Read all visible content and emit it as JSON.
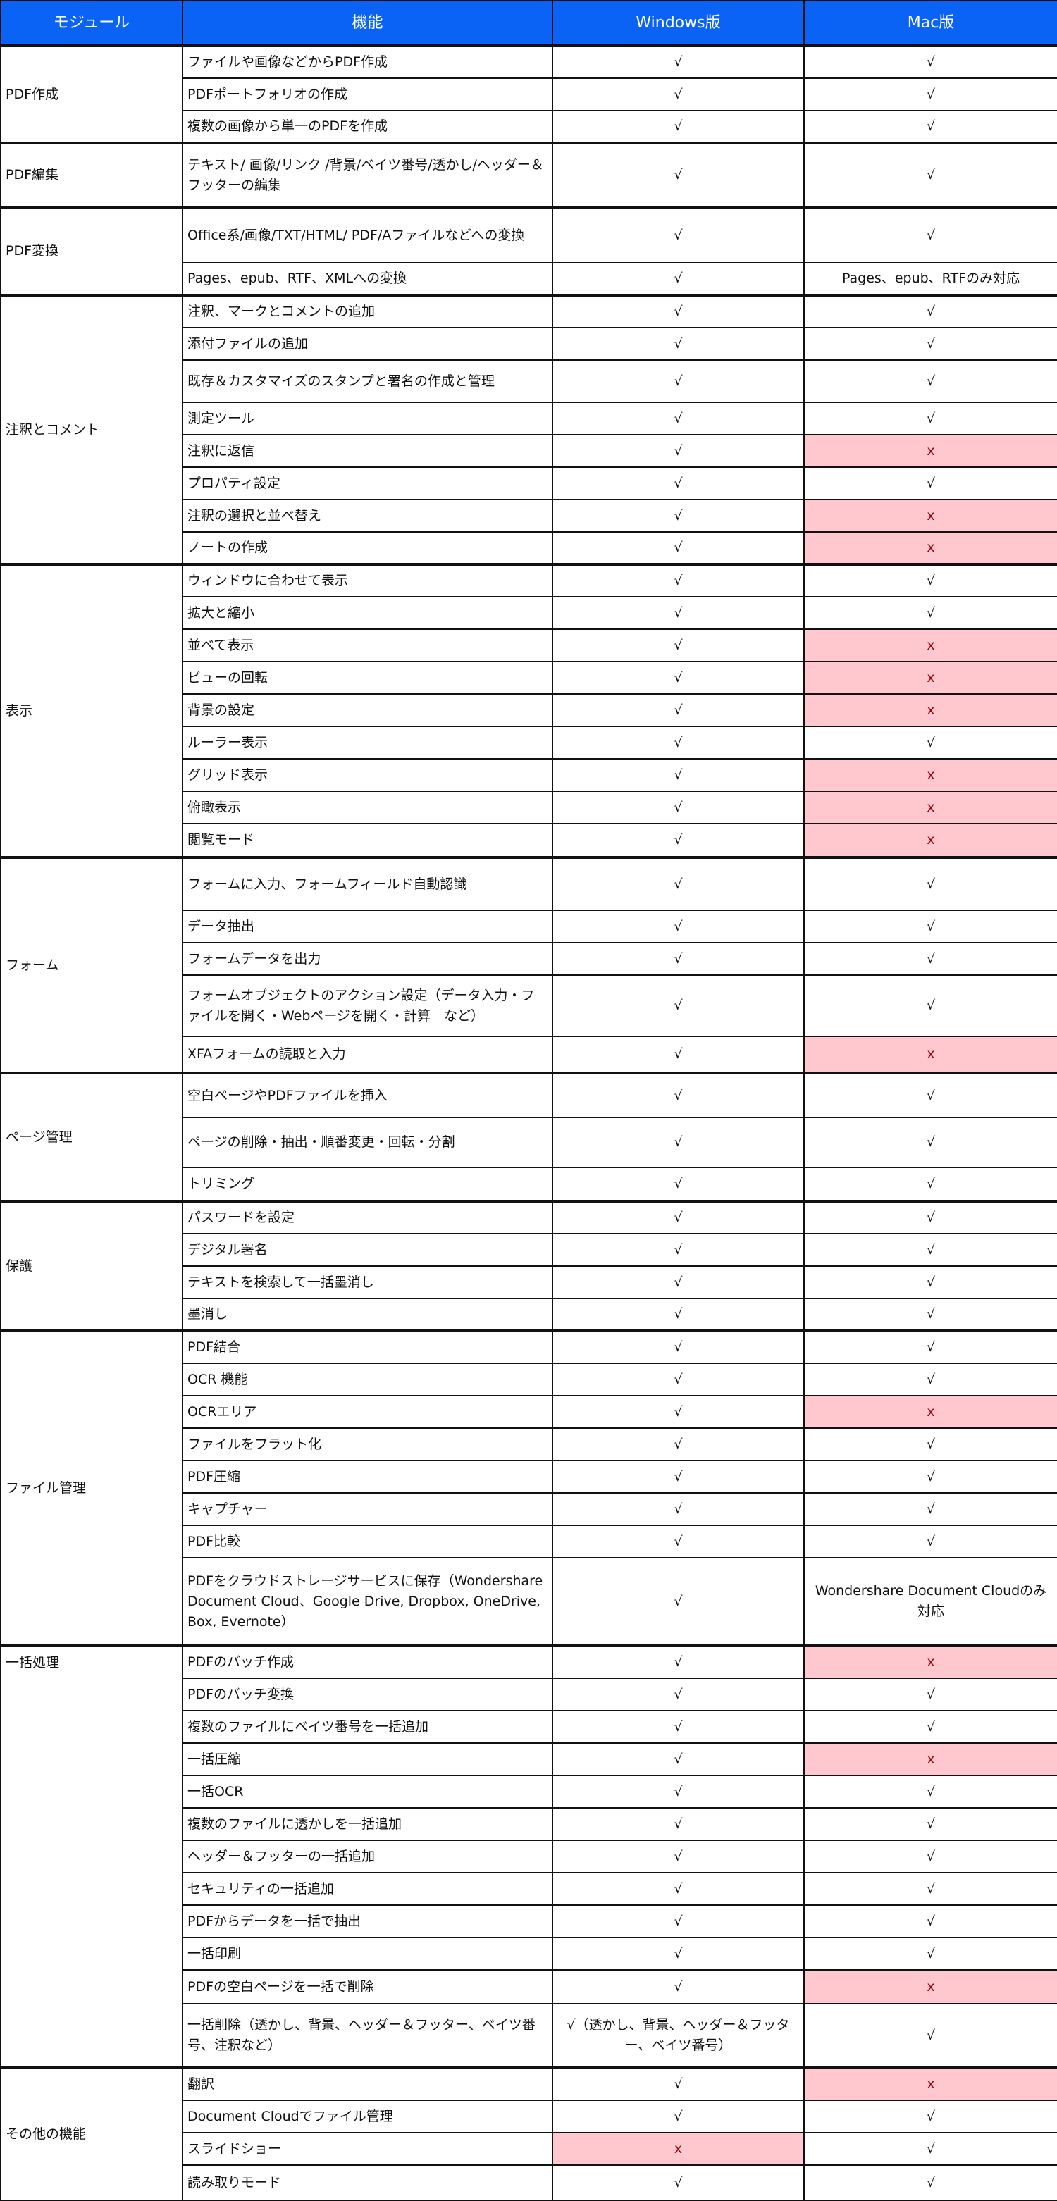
{
  "colors": {
    "header_bg": "#0a63f5",
    "unsupported_bg": "#ffc7ce",
    "unsupported_text": "#9c0006"
  },
  "header": {
    "module": "モジュール",
    "feature": "機能",
    "windows": "Windows版",
    "mac": "Mac版"
  },
  "groups": [
    {
      "module": "PDF作成",
      "rows": [
        {
          "feature": "ファイルや画像などからPDF作成",
          "win": "√",
          "mac": "√"
        },
        {
          "feature": "PDFポートフォリオの作成",
          "win": "√",
          "mac": "√"
        },
        {
          "feature": "複数の画像から単一のPDFを作成",
          "win": "√",
          "mac": "√"
        }
      ]
    },
    {
      "module": "PDF編集",
      "rows": [
        {
          "feature": "テキスト/ 画像/リンク /背景/ベイツ番号/透かし/ヘッダー＆フッターの編集",
          "win": "√",
          "mac": "√"
        }
      ]
    },
    {
      "module": "PDF変換",
      "rows": [
        {
          "feature": "Office系/画像/TXT/HTML/ PDF/Aファイルなどへの変換",
          "win": "√",
          "mac": "√"
        },
        {
          "feature": "Pages、epub、RTF、XMLへの変換",
          "win": "√",
          "mac": "Pages、epub、RTFのみ対応"
        }
      ]
    },
    {
      "module": "注釈とコメント",
      "rows": [
        {
          "feature": "注釈、マークとコメントの追加",
          "win": "√",
          "mac": "√"
        },
        {
          "feature": "添付ファイルの追加",
          "win": "√",
          "mac": "√"
        },
        {
          "feature": "既存＆カスタマイズのスタンプと署名の作成と管理",
          "win": "√",
          "mac": "√"
        },
        {
          "feature": "測定ツール",
          "win": "√",
          "mac": "√"
        },
        {
          "feature": "注釈に返信",
          "win": "√",
          "mac": "x"
        },
        {
          "feature": "プロパティ設定",
          "win": "√",
          "mac": "√"
        },
        {
          "feature": "注釈の選択と並べ替え",
          "win": "√",
          "mac": "x"
        },
        {
          "feature": "ノートの作成",
          "win": "√",
          "mac": "x"
        }
      ]
    },
    {
      "module": "表示",
      "rows": [
        {
          "feature": "ウィンドウに合わせて表示",
          "win": "√",
          "mac": "√"
        },
        {
          "feature": "拡大と縮小",
          "win": "√",
          "mac": "√"
        },
        {
          "feature": "並べて表示",
          "win": "√",
          "mac": "x"
        },
        {
          "feature": "ビューの回転",
          "win": "√",
          "mac": "x"
        },
        {
          "feature": "背景の設定",
          "win": "√",
          "mac": "x"
        },
        {
          "feature": "ルーラー表示",
          "win": "√",
          "mac": "√"
        },
        {
          "feature": "グリッド表示",
          "win": "√",
          "mac": "x"
        },
        {
          "feature": "俯瞰表示",
          "win": "√",
          "mac": "x"
        },
        {
          "feature": "閲覧モード",
          "win": "√",
          "mac": "x"
        }
      ]
    },
    {
      "module": "フォーム",
      "rows": [
        {
          "feature": "フォームに入力、フォームフィールド自動認識",
          "win": "√",
          "mac": "√"
        },
        {
          "feature": "データ抽出",
          "win": "√",
          "mac": "√"
        },
        {
          "feature": "フォームデータを出力",
          "win": "√",
          "mac": "√"
        },
        {
          "feature": "フォームオブジェクトのアクション設定（データ入力・ファイルを開く・Webページを開く・計算　など）",
          "win": "√",
          "mac": "√"
        },
        {
          "feature": "XFAフォームの読取と入力",
          "win": "√",
          "mac": "x"
        }
      ]
    },
    {
      "module": "ページ管理",
      "rows": [
        {
          "feature": "空白ページやPDFファイルを挿入",
          "win": "√",
          "mac": "√"
        },
        {
          "feature": "ページの削除・抽出・順番変更・回転・分割",
          "win": "√",
          "mac": "√"
        },
        {
          "feature": "トリミング",
          "win": "√",
          "mac": "√"
        }
      ]
    },
    {
      "module": "保護",
      "rows": [
        {
          "feature": "パスワードを設定",
          "win": "√",
          "mac": "√"
        },
        {
          "feature": "デジタル署名",
          "win": "√",
          "mac": "√"
        },
        {
          "feature": "テキストを検索して一括墨消し",
          "win": "√",
          "mac": "√"
        },
        {
          "feature": "墨消し",
          "win": "√",
          "mac": "√"
        }
      ]
    },
    {
      "module": "ファイル管理",
      "rows": [
        {
          "feature": "PDF結合",
          "win": "√",
          "mac": "√"
        },
        {
          "feature": "OCR 機能",
          "win": "√",
          "mac": "√"
        },
        {
          "feature": "OCRエリア",
          "win": "√",
          "mac": "x"
        },
        {
          "feature": "ファイルをフラット化",
          "win": "√",
          "mac": "√"
        },
        {
          "feature": "PDF圧縮",
          "win": "√",
          "mac": "√"
        },
        {
          "feature": "キャプチャー",
          "win": "√",
          "mac": "√"
        },
        {
          "feature": "PDF比較",
          "win": "√",
          "mac": "√"
        },
        {
          "feature": "PDFをクラウドストレージサービスに保存（Wondershare Document Cloud、Google Drive, Dropbox, OneDrive,  Box, Evernote）",
          "win": "√",
          "mac": "Wondershare Document Cloudのみ対応"
        }
      ]
    },
    {
      "module": "一括処理",
      "rows": [
        {
          "feature": "PDFのバッチ作成",
          "win": "√",
          "mac": "x"
        },
        {
          "feature": "PDFのバッチ変換",
          "win": "√",
          "mac": "√"
        },
        {
          "feature": "複数のファイルにベイツ番号を一括追加",
          "win": "√",
          "mac": "√"
        },
        {
          "feature": "一括圧縮",
          "win": "√",
          "mac": "x"
        },
        {
          "feature": "一括OCR",
          "win": "√",
          "mac": "√"
        },
        {
          "feature": "複数のファイルに透かしを一括追加",
          "win": "√",
          "mac": "√"
        },
        {
          "feature": "ヘッダー＆フッターの一括追加",
          "win": "√",
          "mac": "√"
        },
        {
          "feature": "セキュリティの一括追加",
          "win": "√",
          "mac": "√"
        },
        {
          "feature": "PDFからデータを一括で抽出",
          "win": "√",
          "mac": "√"
        },
        {
          "feature": "一括印刷",
          "win": "√",
          "mac": "√"
        },
        {
          "feature": "PDFの空白ページを一括で削除",
          "win": "√",
          "mac": "x"
        },
        {
          "feature": "一括削除（透かし、背景、ヘッダー＆フッター、ベイツ番号、注釈など）",
          "win": "√（透かし、背景、ヘッダー＆フッター、ベイツ番号）",
          "mac": "√"
        }
      ]
    },
    {
      "module": "その他の機能",
      "rows": [
        {
          "feature": "翻訳",
          "win": "√",
          "mac": "x"
        },
        {
          "feature": "Document Cloudでファイル管理",
          "win": "√",
          "mac": "√"
        },
        {
          "feature": "スライドショー",
          "win": "x",
          "mac": "√"
        },
        {
          "feature": "読み取りモード",
          "win": "√",
          "mac": "√"
        }
      ]
    }
  ]
}
